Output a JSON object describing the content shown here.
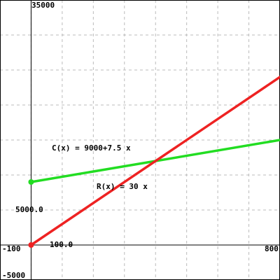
{
  "chart_data": {
    "type": "line",
    "xlim": [
      -100,
      800
    ],
    "ylim": [
      -5000,
      35000
    ],
    "x_grid_step": 100,
    "y_grid_step": 5000,
    "grid": true,
    "axis_labels": {
      "x_min": "-100",
      "x_max": "800",
      "x_tick": "100.0",
      "y_max": "35000",
      "y_min": "-5000",
      "y_tick": "5000.0"
    },
    "series": [
      {
        "name": "C(x) = 9000+7.5 x",
        "color": "#22dd22",
        "x": [
          0,
          800
        ],
        "y": [
          9000,
          15000
        ]
      },
      {
        "name": "R(x) = 30 x",
        "color": "#ee2222",
        "x": [
          0,
          800
        ],
        "y": [
          0,
          24000
        ]
      }
    ],
    "marker_point": {
      "x": 0,
      "y": 0,
      "color": "#ee2222"
    }
  }
}
